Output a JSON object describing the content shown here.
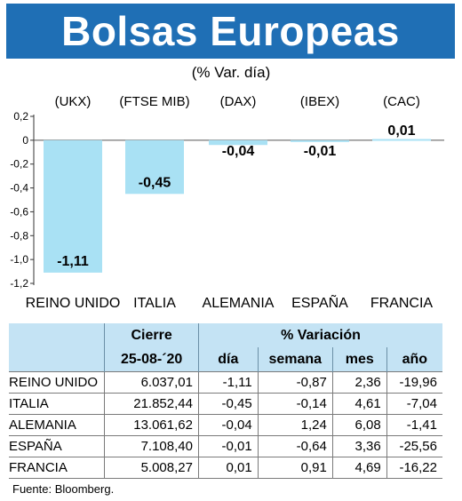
{
  "title": "Bolsas Europeas",
  "subtitle": "(% Var. día)",
  "colors": {
    "title_bg": "#1f6fb5",
    "bar": "#a9e1f4",
    "table_header": "#c4e3f4"
  },
  "chart_data": {
    "type": "bar",
    "indices": [
      "(UKX)",
      "(FTSE MIB)",
      "(DAX)",
      "(IBEX)",
      "(CAC)"
    ],
    "categories": [
      "REINO UNIDO",
      "ITALIA",
      "ALEMANIA",
      "ESPAÑA",
      "FRANCIA"
    ],
    "values": [
      -1.11,
      -0.45,
      -0.04,
      -0.01,
      0.01
    ],
    "data_labels": [
      "-1,11",
      "-0,45",
      "-0,04",
      "-0,01",
      "0,01"
    ],
    "yticks": [
      "0,2",
      "0",
      "-0,2",
      "-0,4",
      "-0,6",
      "-0,8",
      "-1,0",
      "-1,2"
    ],
    "ytick_values": [
      0.2,
      0,
      -0.2,
      -0.4,
      -0.6,
      -0.8,
      -1.0,
      -1.2
    ],
    "ylim": [
      -1.2,
      0.2
    ]
  },
  "table": {
    "header_cierre": "Cierre",
    "header_variacion": "% Variación",
    "date": "25-08-´20",
    "col_dia": "día",
    "col_semana": "semana",
    "col_mes": "mes",
    "col_ano": "año",
    "rows": [
      {
        "name": "REINO UNIDO",
        "cierre": "6.037,01",
        "dia": "-1,11",
        "semana": "-0,87",
        "mes": "2,36",
        "ano": "-19,96"
      },
      {
        "name": "ITALIA",
        "cierre": "21.852,44",
        "dia": "-0,45",
        "semana": "-0,14",
        "mes": "4,61",
        "ano": "-7,04"
      },
      {
        "name": "ALEMANIA",
        "cierre": "13.061,62",
        "dia": "-0,04",
        "semana": "1,24",
        "mes": "6,08",
        "ano": "-1,41"
      },
      {
        "name": "ESPAÑA",
        "cierre": "7.108,40",
        "dia": "-0,01",
        "semana": "-0,64",
        "mes": "3,36",
        "ano": "-25,56"
      },
      {
        "name": "FRANCIA",
        "cierre": "5.008,27",
        "dia": "0,01",
        "semana": "0,91",
        "mes": "4,69",
        "ano": "-16,22"
      }
    ]
  },
  "source": "Fuente: Bloomberg."
}
